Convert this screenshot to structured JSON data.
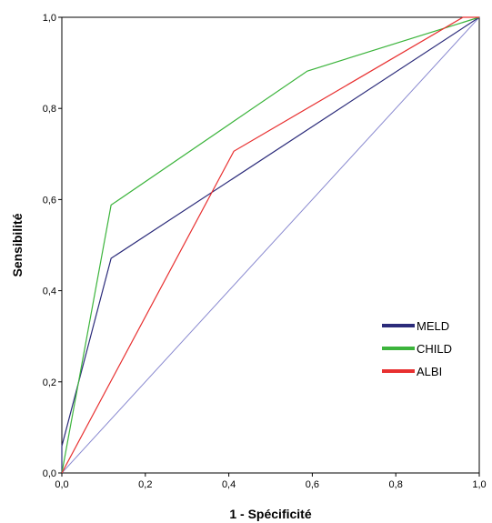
{
  "chart_data": {
    "type": "line",
    "title": "",
    "xlabel": "1 - Spécificité",
    "ylabel": "Sensibilité",
    "xlim": [
      0,
      1
    ],
    "ylim": [
      0,
      1
    ],
    "xticks": [
      "0,0",
      "0,2",
      "0,4",
      "0,6",
      "0,8",
      "1,0"
    ],
    "yticks": [
      "0,0",
      "0,2",
      "0,4",
      "0,6",
      "0,8",
      "1,0"
    ],
    "grid": false,
    "legend_position": "bottom-right",
    "series": [
      {
        "name": "MELD",
        "color": "#2b2b7a",
        "points": [
          [
            0,
            0
          ],
          [
            0,
            0.059
          ],
          [
            0.118,
            0.471
          ],
          [
            1,
            1
          ]
        ]
      },
      {
        "name": "CHILD",
        "color": "#3cb43c",
        "points": [
          [
            0,
            0
          ],
          [
            0.118,
            0.588
          ],
          [
            0.588,
            0.882
          ],
          [
            1,
            1
          ]
        ]
      },
      {
        "name": "ALBI",
        "color": "#e83030",
        "points": [
          [
            0,
            0
          ],
          [
            0.412,
            0.706
          ],
          [
            0.961,
            1
          ],
          [
            1,
            1
          ]
        ]
      }
    ],
    "reference_line": {
      "color": "#8a8ad0",
      "points": [
        [
          0,
          0
        ],
        [
          1,
          1
        ]
      ]
    }
  }
}
